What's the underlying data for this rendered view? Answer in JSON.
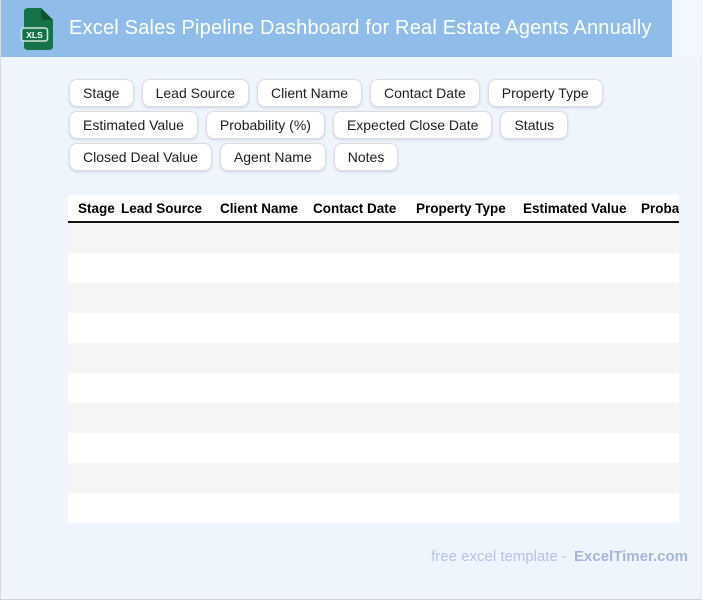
{
  "banner": {
    "title": "Excel Sales Pipeline Dashboard for Real Estate Agents Annually",
    "icon_label": "XLS",
    "bar_color": "#8fbce8",
    "icon_color": "#157347"
  },
  "chips": [
    "Stage",
    "Lead Source",
    "Client Name",
    "Contact Date",
    "Property Type",
    "Estimated Value",
    "Probability (%)",
    "Expected Close Date",
    "Status",
    "Closed Deal Value",
    "Agent Name",
    "Notes"
  ],
  "table": {
    "columns": [
      "Stage",
      "Lead Source",
      "Client Name",
      "Contact Date",
      "Property Type",
      "Estimated Value",
      "Probability (%)"
    ],
    "empty_row_count": 10,
    "stripe_color": "#f5f5f5"
  },
  "footer": {
    "text": "free excel template -",
    "brand": "ExcelTimer.com"
  }
}
